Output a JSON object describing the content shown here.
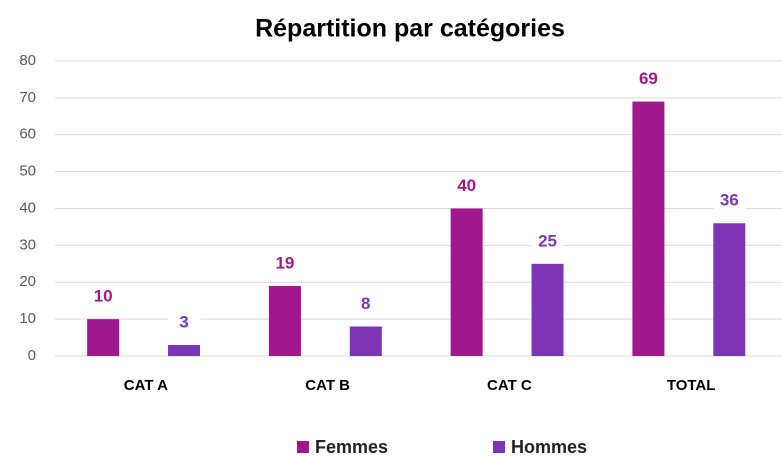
{
  "chart_data": {
    "type": "bar",
    "title": "Répartition par catégories",
    "categories": [
      "CAT A",
      "CAT B",
      "CAT C",
      "TOTAL"
    ],
    "series": [
      {
        "name": "Femmes",
        "color": "#a0198c",
        "values": [
          10,
          19,
          40,
          69
        ]
      },
      {
        "name": "Hommes",
        "color": "#7b35b5",
        "values": [
          3,
          8,
          25,
          36
        ]
      }
    ],
    "ylim": [
      0,
      80
    ],
    "yticks": [
      0,
      10,
      20,
      30,
      40,
      50,
      60,
      70,
      80
    ],
    "grid": true,
    "legend": "bottom"
  }
}
